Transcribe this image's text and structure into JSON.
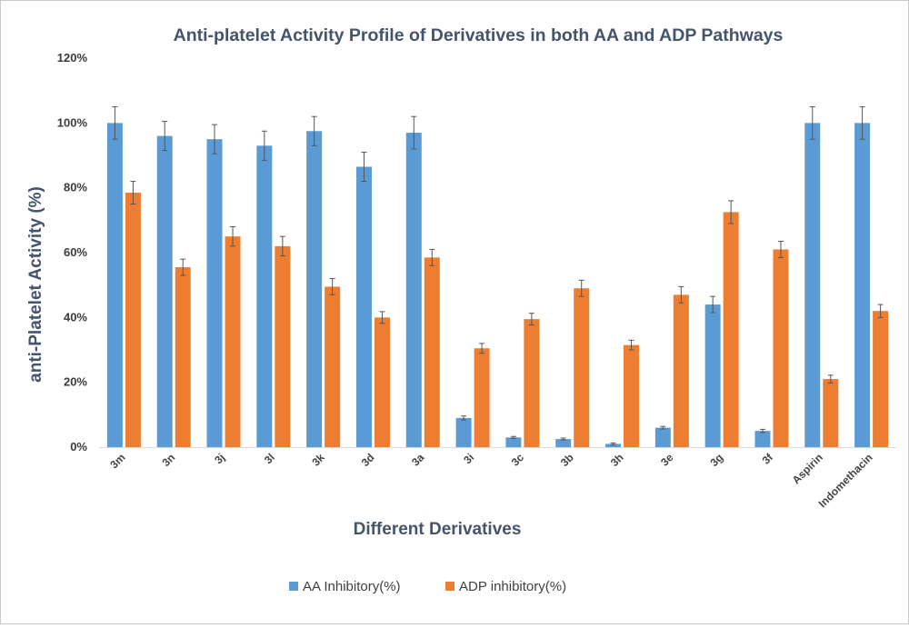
{
  "chart_data": {
    "type": "bar",
    "title": "Anti-platelet Activity Profile of Derivatives in both AA and ADP Pathways",
    "xlabel": "Different Derivatives",
    "ylabel": "anti-Platelet Activity (%)",
    "ylim": [
      0,
      120
    ],
    "yticks": [
      "0%",
      "20%",
      "40%",
      "60%",
      "80%",
      "100%",
      "120%"
    ],
    "grid": false,
    "legend_position": "bottom",
    "categories": [
      "3m",
      "3n",
      "3j",
      "3l",
      "3k",
      "3d",
      "3a",
      "3i",
      "3c",
      "3b",
      "3h",
      "3e",
      "3g",
      "3f",
      "Aspirin",
      "Indomethacin"
    ],
    "series": [
      {
        "name": "AA Inhibitory(%)",
        "color": "#5b9bd5",
        "values": [
          100,
          96,
          95,
          93,
          97.5,
          86.5,
          97,
          9,
          3,
          2.5,
          1,
          6,
          44,
          5,
          100,
          100
        ],
        "errors": [
          5,
          4.5,
          4.5,
          4.5,
          4.5,
          4.5,
          5,
          0.6,
          0.3,
          0.3,
          0.3,
          0.4,
          2.5,
          0.5,
          5,
          5
        ]
      },
      {
        "name": "ADP inhibitory(%)",
        "color": "#ed7d31",
        "values": [
          78.5,
          55.5,
          65,
          62,
          49.5,
          40,
          58.5,
          30.5,
          39.5,
          49,
          31.5,
          47,
          72.5,
          61,
          21,
          42
        ],
        "errors": [
          3.5,
          2.5,
          3,
          3,
          2.5,
          1.8,
          2.5,
          1.5,
          1.8,
          2.5,
          1.5,
          2.5,
          3.5,
          2.5,
          1.2,
          2
        ]
      }
    ]
  }
}
